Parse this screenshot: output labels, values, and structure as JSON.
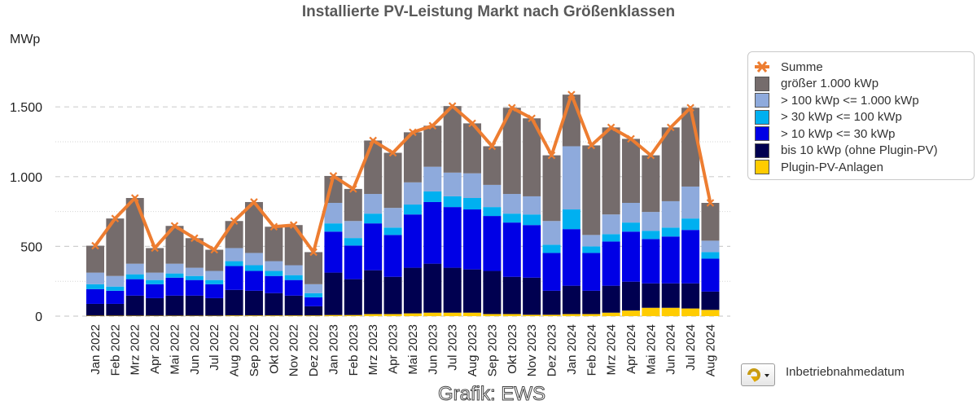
{
  "chart_data": {
    "type": "bar",
    "stacked": true,
    "title": "Installierte PV-Leistung Markt nach Größenklassen",
    "ylabel": "MWp",
    "xlabel": "",
    "ylim": [
      0,
      1750
    ],
    "yticks": [
      0,
      500,
      1000,
      1500
    ],
    "ytick_labels": [
      "0",
      "500",
      "1.000",
      "1.500"
    ],
    "minor_gridlines": [
      250,
      750,
      1250
    ],
    "grid": true,
    "legend_position": "right",
    "categories": [
      "Jan 2022",
      "Feb 2022",
      "Mrz 2022",
      "Apr 2022",
      "Mai 2022",
      "Jun 2022",
      "Jul 2022",
      "Aug 2022",
      "Sep 2022",
      "Okt 2022",
      "Nov 2022",
      "Dez 2022",
      "Jan 2023",
      "Feb 2023",
      "Mrz 2023",
      "Apr 2023",
      "Mai 2023",
      "Jun 2023",
      "Jul 2023",
      "Aug 2023",
      "Sep 2023",
      "Okt 2023",
      "Nov 2023",
      "Dez 2023",
      "Jan 2024",
      "Feb 2024",
      "Mrz 2024",
      "Apr 2024",
      "Mai 2024",
      "Jun 2024",
      "Jul 2024",
      "Aug 2024"
    ],
    "series": [
      {
        "name": "Plugin-PV-Anlagen",
        "color": "#ffcc00",
        "values": [
          3,
          3,
          3,
          3,
          3,
          3,
          3,
          5,
          5,
          5,
          5,
          5,
          8,
          8,
          15,
          15,
          20,
          25,
          25,
          25,
          15,
          15,
          10,
          10,
          15,
          15,
          25,
          40,
          60,
          60,
          55,
          45
        ]
      },
      {
        "name": "bis 10 kWp (ohne Plugin-PV)",
        "color": "#000050",
        "values": [
          85,
          85,
          144,
          126,
          144,
          144,
          126,
          183,
          177,
          160,
          142,
          66,
          304,
          257,
          314,
          267,
          327,
          351,
          322,
          310,
          309,
          267,
          266,
          172,
          203,
          167,
          193,
          207,
          175,
          175,
          180,
          131
        ]
      },
      {
        "name": "> 10 kWp <= 30 kWp",
        "color": "#0000e6",
        "values": [
          106,
          94,
          118,
          100,
          129,
          112,
          100,
          171,
          142,
          123,
          112,
          64,
          294,
          241,
          336,
          300,
          382,
          442,
          435,
          430,
          394,
          389,
          377,
          271,
          406,
          271,
          317,
          359,
          318,
          336,
          383,
          236
        ]
      },
      {
        "name": "> 30 kWp <= 100 kWp",
        "color": "#00b0f0",
        "values": [
          35,
          30,
          35,
          30,
          30,
          29,
          30,
          35,
          41,
          36,
          35,
          30,
          59,
          54,
          70,
          53,
          71,
          76,
          77,
          82,
          64,
          64,
          76,
          59,
          141,
          47,
          53,
          65,
          59,
          64,
          82,
          47
        ]
      },
      {
        "name": "> 100 kWp <= 1.000 kWp",
        "color": "#8eaadc",
        "values": [
          83,
          76,
          76,
          53,
          70,
          59,
          65,
          94,
          88,
          70,
          71,
          64,
          147,
          122,
          141,
          141,
          159,
          177,
          170,
          177,
          159,
          141,
          130,
          170,
          453,
          82,
          141,
          141,
          135,
          189,
          229,
          82
        ]
      },
      {
        "name": "größer 1.000 kWp",
        "color": "#756c6c",
        "values": [
          193,
          412,
          471,
          176,
          271,
          212,
          152,
          194,
          365,
          247,
          288,
          230,
          193,
          230,
          383,
          395,
          359,
          294,
          477,
          358,
          277,
          618,
          559,
          471,
          370,
          642,
          624,
          459,
          406,
          529,
          565,
          271
        ]
      }
    ],
    "line_series": {
      "name": "Summe",
      "color": "#ed7d31",
      "values": [
        505,
        700,
        847,
        488,
        647,
        559,
        476,
        682,
        818,
        641,
        653,
        459,
        1005,
        912,
        1259,
        1171,
        1318,
        1365,
        1506,
        1382,
        1218,
        1494,
        1418,
        1153,
        1588,
        1224,
        1353,
        1271,
        1153,
        1353,
        1494,
        812
      ]
    },
    "legend": [
      "Summe",
      "größer 1.000 kWp",
      "> 100 kWp <= 1.000 kWp",
      "> 30 kWp <= 100 kWp",
      "> 10 kWp <= 30 kWp",
      "bis 10 kWp (ohne Plugin-PV)",
      "Plugin-PV-Anlagen"
    ]
  },
  "footer": {
    "credit": "Grafik: EWS",
    "date_selector_label": "Inbetriebnahmedatum",
    "date_selector_icon": "rotate-arrow-dropdown-icon"
  }
}
